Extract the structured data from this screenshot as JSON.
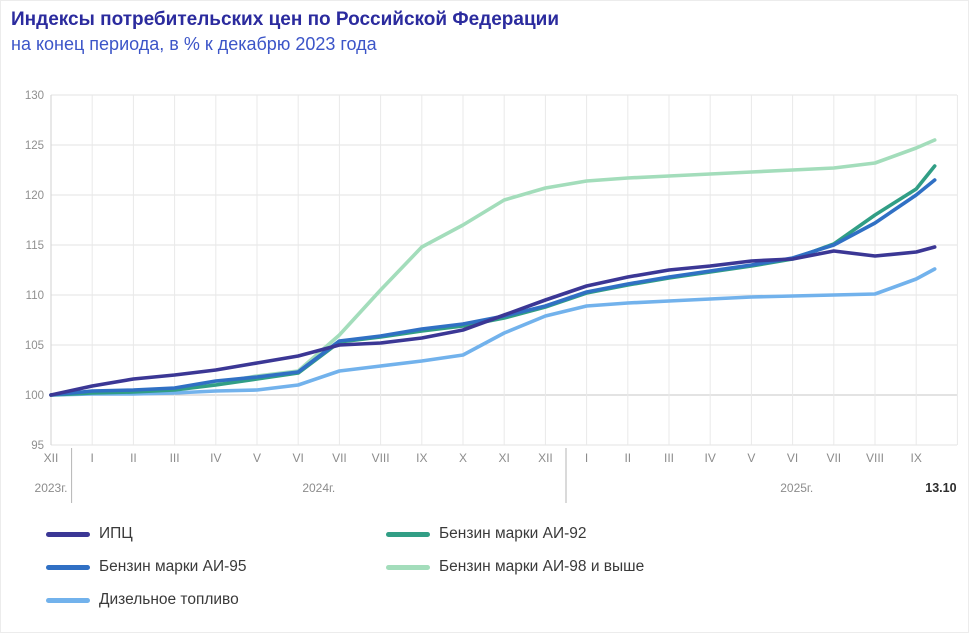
{
  "header": {
    "title": "Индексы потребительских цен по Российской Федерации",
    "subtitle": "на конец периода, в % к декабрю 2023 года"
  },
  "chart_data": {
    "type": "line",
    "title": "Индексы потребительских цен по Российской Федерации",
    "subtitle": "на конец периода, в % к декабрю 2023 года",
    "ylabel": "",
    "xlabel": "",
    "ylim": [
      95,
      130
    ],
    "y_ticks": [
      95,
      100,
      105,
      110,
      115,
      120,
      125,
      130
    ],
    "grid": true,
    "legend_position": "bottom-left",
    "x_tick_labels": [
      "XII",
      "I",
      "II",
      "III",
      "IV",
      "V",
      "VI",
      "VII",
      "VIII",
      "IX",
      "X",
      "XI",
      "XII",
      "I",
      "II",
      "III",
      "IV",
      "V",
      "VI",
      "VII",
      "VIII",
      "IX"
    ],
    "year_labels": [
      {
        "text": "2023г.",
        "x_index": 0
      },
      {
        "text": "2024г.",
        "x_index": 6.5
      },
      {
        "text": "2025г.",
        "x_index": 18.1
      }
    ],
    "end_label": {
      "text": "13.10",
      "x_index": 21.6
    },
    "separators_x_index": [
      0.5,
      12.5
    ],
    "x_positions": [
      0,
      1,
      2,
      3,
      4,
      5,
      6,
      7,
      8,
      9,
      10,
      11,
      12,
      13,
      14,
      15,
      16,
      17,
      18,
      19,
      20,
      21,
      21.45
    ],
    "draw_order": [
      3,
      4,
      1,
      2,
      0
    ],
    "series": [
      {
        "name": "ИПЦ",
        "color": "#3b3795",
        "values": [
          100,
          100.9,
          101.6,
          102.0,
          102.5,
          103.2,
          103.9,
          105.0,
          105.2,
          105.7,
          106.5,
          108.0,
          109.5,
          110.9,
          111.8,
          112.5,
          112.9,
          113.4,
          113.6,
          114.4,
          113.9,
          114.3,
          114.8
        ]
      },
      {
        "name": "Бензин марки АИ-92",
        "color": "#319e85",
        "values": [
          100,
          100.2,
          100.3,
          100.5,
          101.0,
          101.6,
          102.2,
          105.3,
          105.8,
          106.4,
          106.9,
          107.7,
          108.8,
          110.2,
          111.0,
          111.7,
          112.3,
          112.9,
          113.6,
          115.1,
          118.0,
          120.6,
          122.9
        ]
      },
      {
        "name": "Бензин марки АИ-95",
        "color": "#3070c4",
        "values": [
          100,
          100.4,
          100.5,
          100.7,
          101.4,
          101.8,
          102.3,
          105.4,
          105.9,
          106.6,
          107.1,
          107.9,
          108.9,
          110.3,
          111.1,
          111.8,
          112.4,
          113.0,
          113.7,
          115.0,
          117.2,
          120.0,
          121.5
        ]
      },
      {
        "name": "Бензин марки АИ-98 и выше",
        "color": "#a3ddbb",
        "values": [
          100,
          100.2,
          100.3,
          100.6,
          101.2,
          101.9,
          102.4,
          106.0,
          110.5,
          114.8,
          117.0,
          119.5,
          120.7,
          121.4,
          121.7,
          121.9,
          122.1,
          122.3,
          122.5,
          122.7,
          123.2,
          124.7,
          125.5
        ]
      },
      {
        "name": "Дизельное топливо",
        "color": "#72b2ec",
        "values": [
          100,
          100.1,
          100.1,
          100.2,
          100.4,
          100.5,
          101.0,
          102.4,
          102.9,
          103.4,
          104.0,
          106.2,
          107.9,
          108.9,
          109.2,
          109.4,
          109.6,
          109.8,
          109.9,
          110.0,
          110.1,
          111.6,
          112.6
        ]
      }
    ]
  },
  "legend": {
    "items": [
      {
        "label": "ИПЦ",
        "color": "#3b3795"
      },
      {
        "label": "Бензин марки АИ-92",
        "color": "#319e85"
      },
      {
        "label": "Бензин марки АИ-95",
        "color": "#3070c4"
      },
      {
        "label": "Бензин марки АИ-98 и выше",
        "color": "#a3ddbb"
      },
      {
        "label": "Дизельное топливо",
        "color": "#72b2ec"
      }
    ]
  }
}
